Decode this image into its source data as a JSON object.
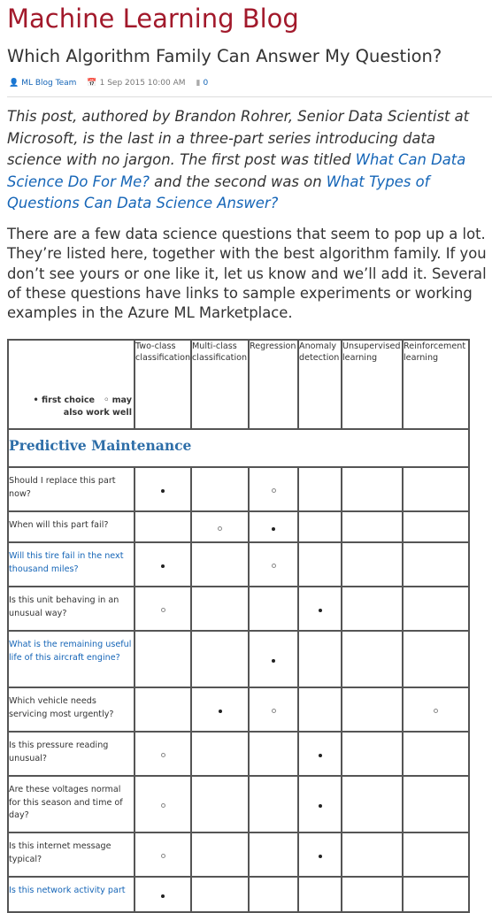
{
  "blog": {
    "title": "Machine Learning Blog"
  },
  "post": {
    "title": "Which Algorithm Family Can Answer My Question?",
    "meta": {
      "author": "ML Blog Team",
      "date": "1 Sep 2015 10:00 AM",
      "comments": "0"
    },
    "intro": {
      "part1": "This post, authored by Brandon Rohrer, Senior Data Scientist at Microsoft, is the last in a three-part series introducing data science with no jargon. The first post was titled ",
      "link1": "What Can Data Science Do For Me?",
      "part2": " and the second was on ",
      "link2": "What Types of Questions Can Data Science Answer?"
    },
    "body": "There are a few data science questions that seem to pop up a lot. They’re listed here, together with the best algorithm family. If you don’t see yours or one like it, let us know and we’ll add it. Several of these questions have links to sample experiments or working examples in the Azure ML Marketplace."
  },
  "table": {
    "legend": {
      "first": "• first choice",
      "may": "◦ may",
      "also": "also work well"
    },
    "columns": [
      "Two-class classification",
      "Multi-class classification",
      "Regression",
      "Anomaly detection",
      "Unsupervised learning",
      "Reinforcement learning"
    ],
    "section": "Predictive Maintenance",
    "rows": [
      {
        "q": "Should I replace this part now?",
        "link": false,
        "marks": [
          "first",
          "",
          "may",
          "",
          "",
          ""
        ]
      },
      {
        "q": "When will this part fail?",
        "link": false,
        "marks": [
          "",
          "may",
          "first",
          "",
          "",
          ""
        ]
      },
      {
        "q": "Will this tire fail in the next thousand miles?",
        "link": true,
        "marks": [
          "first",
          "",
          "may",
          "",
          "",
          ""
        ]
      },
      {
        "q": "Is this unit behaving in an unusual way?",
        "link": false,
        "marks": [
          "may",
          "",
          "",
          "first",
          "",
          ""
        ]
      },
      {
        "q": "What is the remaining useful life of this aircraft engine?",
        "link": true,
        "marks": [
          "",
          "",
          "first",
          "",
          "",
          ""
        ]
      },
      {
        "q": "Which vehicle needs servicing most urgently?",
        "link": false,
        "marks": [
          "",
          "first",
          "may",
          "",
          "",
          "may"
        ]
      },
      {
        "q": "Is this pressure reading unusual?",
        "link": false,
        "marks": [
          "may",
          "",
          "",
          "first",
          "",
          ""
        ]
      },
      {
        "q": "Are these voltages normal for this season and time of day?",
        "link": false,
        "marks": [
          "may",
          "",
          "",
          "first",
          "",
          ""
        ]
      },
      {
        "q": "Is this internet message typical?",
        "link": false,
        "marks": [
          "may",
          "",
          "",
          "first",
          "",
          ""
        ]
      },
      {
        "q": "Is this network activity part",
        "link": true,
        "marks": [
          "first",
          "",
          "",
          "",
          "",
          ""
        ]
      }
    ]
  },
  "colors": {
    "blog_title": "#a2192b",
    "link": "#1565b7",
    "section": "#2e6ea8"
  }
}
